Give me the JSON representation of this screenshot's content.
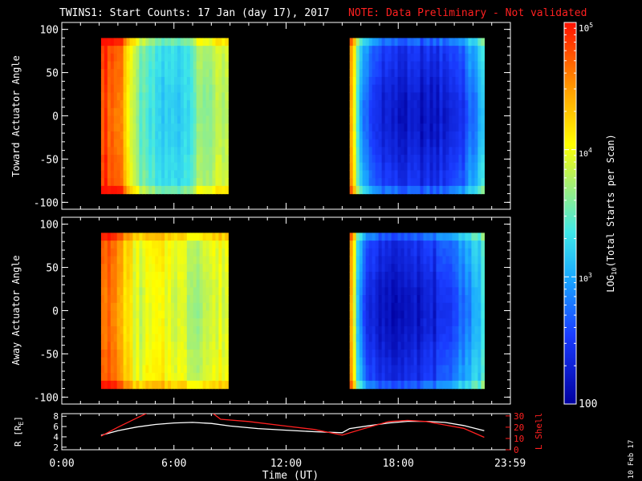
{
  "title": "TWINS1: Start Counts: 17 Jan (day  17), 2017",
  "note": "NOTE: Data Preliminary - Not validated",
  "colors": {
    "note": "#ff2020",
    "axis": "#ffffff",
    "lshell": "#ff2020",
    "rline": "#ffffff",
    "background": "#000000"
  },
  "side_date": "10 Feb 17",
  "colorbar": {
    "label": "LOG10(Total Starts per Scan)",
    "label_main": "LOG",
    "label_sub": "10",
    "label_rest": "(Total Starts per Scan)",
    "scale": "log",
    "range": [
      100,
      100000
    ],
    "tick_labels": [
      {
        "base": "10",
        "exp": "5"
      },
      {
        "base": "10",
        "exp": "4"
      },
      {
        "base": "10",
        "exp": "3"
      },
      {
        "base": "100",
        "exp": ""
      }
    ]
  },
  "chart_data": [
    {
      "type": "heatmap",
      "name": "toward",
      "ylabel": "Toward Actuator Angle",
      "ylim": [
        -108,
        108
      ],
      "y_ticks": [
        -100,
        -50,
        0,
        50,
        100
      ],
      "y_tick_labels": [
        "-100",
        "-50",
        "0",
        "50",
        "100"
      ],
      "xlim_hours": [
        0,
        24
      ],
      "data_ranges_hours": [
        [
          2.1,
          8.9
        ],
        [
          15.4,
          22.6
        ]
      ],
      "angle_range": [
        -90,
        90
      ],
      "profile_log10": [
        [
          [
            2.1,
            4.9
          ],
          [
            3.2,
            4.6
          ],
          [
            3.9,
            3.7
          ],
          [
            4.5,
            3.4
          ],
          [
            5.5,
            3.2
          ],
          [
            6.5,
            3.3
          ],
          [
            7.5,
            3.7
          ],
          [
            8.9,
            3.8
          ]
        ],
        [
          [
            15.4,
            4.8
          ],
          [
            15.9,
            3.2
          ],
          [
            16.5,
            2.6
          ],
          [
            18.0,
            2.3
          ],
          [
            20.0,
            2.3
          ],
          [
            21.5,
            2.6
          ],
          [
            22.6,
            3.2
          ]
        ]
      ]
    },
    {
      "type": "heatmap",
      "name": "away",
      "ylabel": "Away Actuator Angle",
      "ylim": [
        -108,
        108
      ],
      "y_ticks": [
        -100,
        -50,
        0,
        50,
        100
      ],
      "y_tick_labels": [
        "-100",
        "-50",
        "0",
        "50",
        "100"
      ],
      "xlim_hours": [
        0,
        24
      ],
      "data_ranges_hours": [
        [
          2.1,
          8.9
        ],
        [
          15.4,
          22.6
        ]
      ],
      "angle_range": [
        -90,
        90
      ],
      "profile_log10": [
        [
          [
            2.1,
            4.8
          ],
          [
            3.0,
            4.5
          ],
          [
            4.0,
            3.9
          ],
          [
            5.0,
            4.0
          ],
          [
            6.0,
            4.0
          ],
          [
            7.0,
            3.8
          ],
          [
            8.0,
            3.9
          ],
          [
            8.9,
            4.0
          ]
        ],
        [
          [
            15.4,
            4.8
          ],
          [
            15.8,
            3.3
          ],
          [
            16.5,
            2.4
          ],
          [
            18.5,
            2.2
          ],
          [
            20.5,
            2.5
          ],
          [
            22.6,
            3.3
          ]
        ]
      ]
    },
    {
      "type": "line",
      "name": "orbit",
      "xlabel": "Time (UT)",
      "x_ticks_hours": [
        0,
        6,
        12,
        18,
        23.983
      ],
      "x_tick_labels": [
        "0:00",
        "6:00",
        "12:00",
        "18:00",
        "23:59"
      ],
      "xlim_hours": [
        0,
        24
      ],
      "left_axis": {
        "label": "R [RE]",
        "label_main": "R [R",
        "label_sub": "E",
        "label_end": "]",
        "ylim": [
          1.5,
          8.5
        ],
        "ticks": [
          2,
          4,
          6,
          8
        ],
        "tick_labels": [
          "2",
          "4",
          "6",
          "8"
        ]
      },
      "right_axis": {
        "label": "L Shell",
        "ylim": [
          0,
          32
        ],
        "ticks": [
          0,
          10,
          20,
          30
        ],
        "tick_labels": [
          "0",
          "10",
          "20",
          "30"
        ]
      },
      "series": [
        {
          "axis": "left",
          "x": [
            2.1,
            3.0,
            4.0,
            5.0,
            6.0,
            7.0,
            8.0,
            9.0,
            10.5,
            12.0,
            13.5,
            15.0,
            15.4,
            16.5,
            17.5,
            18.5,
            19.5,
            20.5,
            21.5,
            22.6
          ],
          "y": [
            4.3,
            5.2,
            5.9,
            6.4,
            6.7,
            6.8,
            6.6,
            6.1,
            5.6,
            5.3,
            5.0,
            4.8,
            5.6,
            6.2,
            6.7,
            7.0,
            7.0,
            6.8,
            6.2,
            5.2
          ]
        },
        {
          "axis": "right",
          "x": [
            2.1,
            3.0,
            4.0,
            4.5,
            4.7,
            null,
            8.1,
            8.5,
            10.0,
            12.0,
            13.5,
            15.0,
            16.0,
            17.5,
            18.5,
            19.5,
            20.5,
            21.5,
            22.6
          ],
          "y": [
            12,
            20,
            28,
            32,
            34,
            null,
            32,
            27,
            25,
            21,
            18,
            13,
            18,
            25,
            26,
            25,
            22,
            19,
            11
          ]
        }
      ]
    }
  ]
}
